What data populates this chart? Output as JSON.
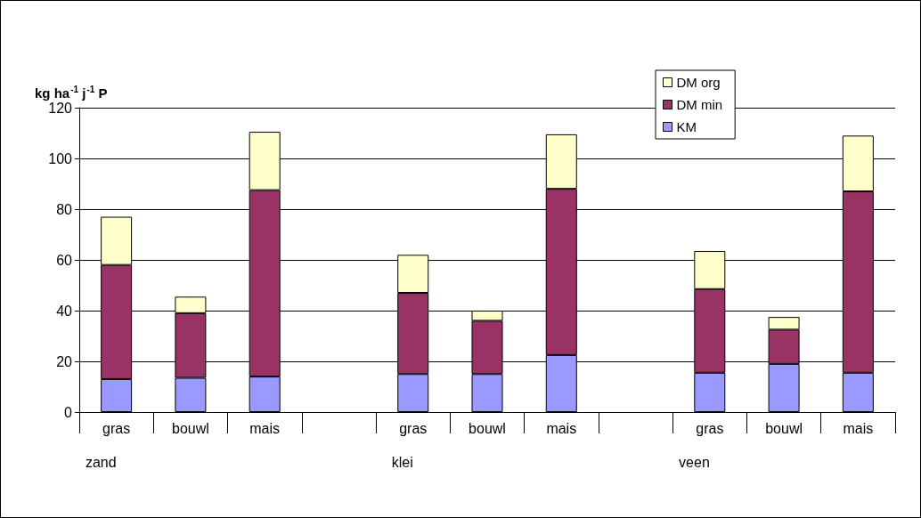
{
  "chart_data": {
    "type": "bar",
    "stacked": true,
    "ylabel": "kg ha$^{-1}$ j$^{-1}$ P",
    "categories": [
      "gras",
      "bouwl",
      "mais",
      null,
      "gras",
      "bouwl",
      "mais",
      null,
      "gras",
      "bouwl",
      "mais"
    ],
    "annotations": [
      "zand",
      "klei",
      "veen"
    ],
    "series": [
      {
        "name": "KM",
        "color": "#9999ff",
        "values": [
          13,
          13.5,
          14,
          null,
          15,
          15,
          22.5,
          null,
          15.5,
          19,
          15.5
        ]
      },
      {
        "name": "DM min",
        "color": "#993366",
        "values": [
          45,
          25.5,
          73.5,
          null,
          32,
          21,
          65.5,
          null,
          33,
          13.5,
          71.5
        ]
      },
      {
        "name": "DM org",
        "color": "#ffffcc",
        "values": [
          19,
          6.5,
          23,
          null,
          15,
          4,
          21.5,
          null,
          15,
          5,
          22
        ]
      }
    ],
    "ylim": [
      0,
      120
    ],
    "yticks": [
      0,
      20,
      40,
      60,
      80,
      100,
      120
    ],
    "grid": "y",
    "legend": "top right"
  }
}
